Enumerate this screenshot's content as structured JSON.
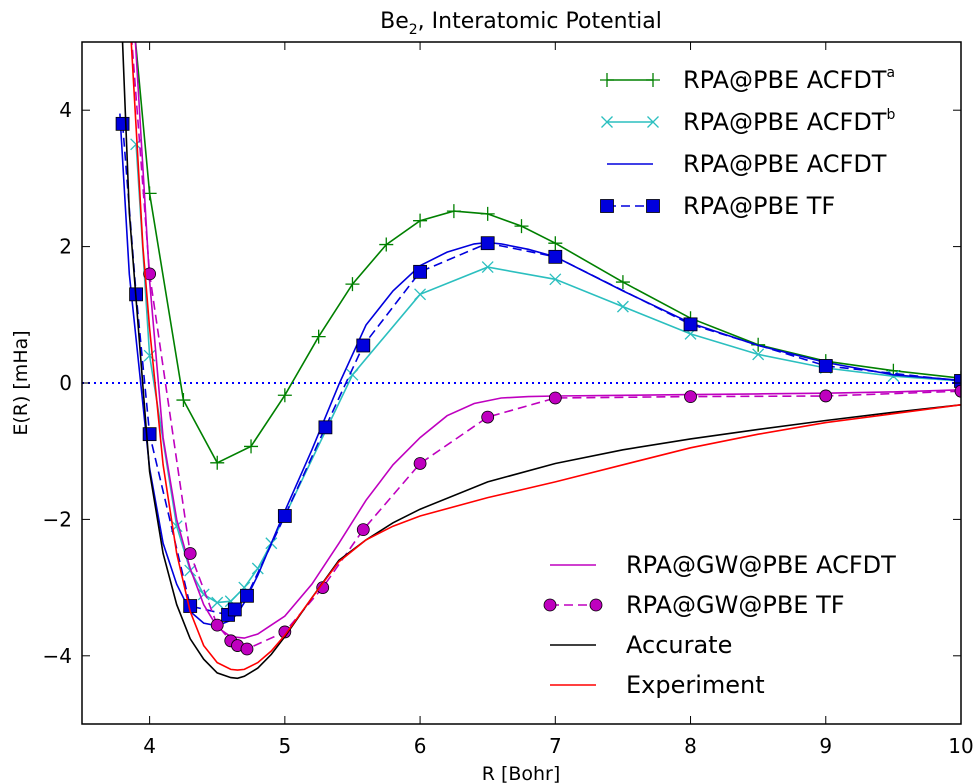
{
  "chart_data": {
    "type": "line",
    "title": "Be",
    "title_subscript": "2",
    "title_rest": ", Interatomic Potential",
    "xlabel": "R [Bohr]",
    "ylabel": "E(R) [mHa]",
    "xlim": [
      3.5,
      10
    ],
    "ylim": [
      -5,
      5
    ],
    "xticks": [
      4,
      5,
      6,
      7,
      8,
      9,
      10
    ],
    "xtick_labels": [
      "4",
      "5",
      "6",
      "7",
      "8",
      "9",
      "10"
    ],
    "yticks": [
      -4,
      -2,
      0,
      2,
      4
    ],
    "ytick_labels": [
      "−4",
      "−2",
      "0",
      "2",
      "4"
    ],
    "zero_line": {
      "y": 0,
      "color": "#0000ff",
      "style": "dotted"
    },
    "legend_upper": {
      "placement": "top-right",
      "entries": [
        0,
        1,
        2,
        3
      ]
    },
    "legend_lower": {
      "placement": "lower-right",
      "entries": [
        4,
        5,
        6,
        7
      ]
    },
    "series": [
      {
        "name": "RPA@PBE ACFDT",
        "superscript": "a",
        "color": "#008000",
        "marker": "plus",
        "dash": "solid",
        "x": [
          3.85,
          4.0,
          4.25,
          4.5,
          4.75,
          5.0,
          5.25,
          5.5,
          5.75,
          6.0,
          6.25,
          6.5,
          6.75,
          7.0,
          7.5,
          8.0,
          8.5,
          9.0,
          9.5,
          10.0
        ],
        "y": [
          6.0,
          2.78,
          -0.25,
          -1.17,
          -0.93,
          -0.18,
          0.68,
          1.45,
          2.03,
          2.38,
          2.52,
          2.48,
          2.3,
          2.05,
          1.48,
          0.95,
          0.56,
          0.32,
          0.18,
          0.07
        ]
      },
      {
        "name": "RPA@PBE ACFDT",
        "superscript": "b",
        "color": "#2bbfbf",
        "marker": "x",
        "dash": "solid",
        "x": [
          3.9,
          4.0,
          4.2,
          4.3,
          4.4,
          4.5,
          4.6,
          4.7,
          4.8,
          4.9,
          5.0,
          5.5,
          6.0,
          6.5,
          7.0,
          7.5,
          8.0,
          8.5,
          9.0,
          9.5,
          10.0
        ],
        "y": [
          3.5,
          0.4,
          -2.1,
          -2.75,
          -3.1,
          -3.22,
          -3.2,
          -3.0,
          -2.72,
          -2.35,
          -1.95,
          0.12,
          1.3,
          1.7,
          1.52,
          1.12,
          0.72,
          0.42,
          0.22,
          0.1,
          0.03
        ]
      },
      {
        "name": "RPA@PBE ACFDT",
        "color": "#0000dd",
        "marker": "none",
        "dash": "solid",
        "x": [
          3.78,
          3.85,
          4.0,
          4.1,
          4.2,
          4.3,
          4.4,
          4.5,
          4.6,
          4.65,
          4.7,
          4.8,
          4.9,
          5.0,
          5.2,
          5.4,
          5.6,
          5.8,
          6.0,
          6.2,
          6.4,
          6.5,
          6.6,
          6.8,
          7.0,
          7.5,
          8.0,
          8.5,
          9.0,
          9.5,
          10.0
        ],
        "y": [
          3.95,
          1.6,
          -1.25,
          -2.35,
          -2.95,
          -3.35,
          -3.52,
          -3.56,
          -3.48,
          -3.38,
          -3.22,
          -2.82,
          -2.35,
          -1.88,
          -0.98,
          -0.02,
          0.85,
          1.35,
          1.72,
          1.92,
          2.04,
          2.06,
          2.04,
          1.96,
          1.85,
          1.35,
          0.88,
          0.55,
          0.3,
          0.12,
          0.04
        ]
      },
      {
        "name": "RPA@PBE TF",
        "color": "#0000dd",
        "marker": "square",
        "dash": "dashed",
        "x": [
          3.8,
          3.9,
          4.0,
          4.3,
          4.58,
          4.63,
          4.72,
          5.0,
          5.3,
          5.58,
          6.0,
          6.5,
          7.0,
          8.0,
          9.0,
          10.0
        ],
        "y": [
          3.8,
          1.3,
          -0.75,
          -3.27,
          -3.4,
          -3.32,
          -3.12,
          -1.95,
          -0.65,
          0.55,
          1.63,
          2.05,
          1.85,
          0.86,
          0.25,
          0.03
        ]
      },
      {
        "name": "RPA@GW@PBE ACFDT",
        "color": "#bf00bf",
        "marker": "none",
        "dash": "solid",
        "x": [
          3.88,
          4.0,
          4.1,
          4.2,
          4.3,
          4.4,
          4.5,
          4.6,
          4.7,
          4.8,
          4.9,
          5.0,
          5.2,
          5.4,
          5.6,
          5.8,
          6.0,
          6.2,
          6.4,
          6.6,
          6.8,
          7.0,
          7.5,
          8.0,
          8.5,
          9.0,
          9.5,
          10.0
        ],
        "y": [
          5.5,
          1.5,
          -0.8,
          -2.0,
          -2.72,
          -3.25,
          -3.58,
          -3.72,
          -3.74,
          -3.68,
          -3.55,
          -3.42,
          -2.95,
          -2.35,
          -1.72,
          -1.2,
          -0.8,
          -0.48,
          -0.3,
          -0.22,
          -0.2,
          -0.19,
          -0.18,
          -0.17,
          -0.16,
          -0.15,
          -0.13,
          -0.1
        ]
      },
      {
        "name": "RPA@GW@PBE TF",
        "color": "#bf00bf",
        "marker": "circle",
        "dash": "dashed",
        "x": [
          3.85,
          4.0,
          4.3,
          4.5,
          4.6,
          4.65,
          4.72,
          5.0,
          5.28,
          5.58,
          6.0,
          6.5,
          7.0,
          8.0,
          9.0,
          10.0
        ],
        "y": [
          5.5,
          1.6,
          -2.5,
          -3.55,
          -3.78,
          -3.85,
          -3.9,
          -3.65,
          -3.0,
          -2.15,
          -1.18,
          -0.5,
          -0.22,
          -0.2,
          -0.19,
          -0.12
        ]
      },
      {
        "name": "Accurate",
        "color": "#000000",
        "marker": "none",
        "dash": "solid",
        "x": [
          3.75,
          3.85,
          4.0,
          4.1,
          4.2,
          4.3,
          4.4,
          4.5,
          4.6,
          4.65,
          4.7,
          4.8,
          4.9,
          5.0,
          5.2,
          5.4,
          5.6,
          5.8,
          6.0,
          6.5,
          7.0,
          7.5,
          8.0,
          8.5,
          9.0,
          9.5,
          10.0
        ],
        "y": [
          7.5,
          2.5,
          -1.3,
          -2.5,
          -3.25,
          -3.75,
          -4.05,
          -4.25,
          -4.32,
          -4.33,
          -4.3,
          -4.18,
          -3.98,
          -3.72,
          -3.15,
          -2.6,
          -2.3,
          -2.05,
          -1.85,
          -1.45,
          -1.18,
          -0.98,
          -0.82,
          -0.68,
          -0.55,
          -0.43,
          -0.32
        ]
      },
      {
        "name": "Experiment",
        "color": "#ff0000",
        "marker": "none",
        "dash": "solid",
        "x": [
          3.85,
          3.95,
          4.0,
          4.1,
          4.2,
          4.3,
          4.4,
          4.5,
          4.6,
          4.65,
          4.7,
          4.8,
          4.9,
          5.0,
          5.2,
          5.4,
          5.6,
          5.8,
          6.0,
          6.5,
          7.0,
          7.5,
          8.0,
          8.5,
          9.0,
          9.5,
          10.0
        ],
        "y": [
          5.5,
          2.0,
          0.8,
          -1.2,
          -2.5,
          -3.35,
          -3.85,
          -4.1,
          -4.2,
          -4.21,
          -4.2,
          -4.1,
          -3.93,
          -3.7,
          -3.15,
          -2.62,
          -2.3,
          -2.1,
          -1.95,
          -1.68,
          -1.45,
          -1.2,
          -0.95,
          -0.75,
          -0.58,
          -0.45,
          -0.32
        ]
      }
    ]
  }
}
